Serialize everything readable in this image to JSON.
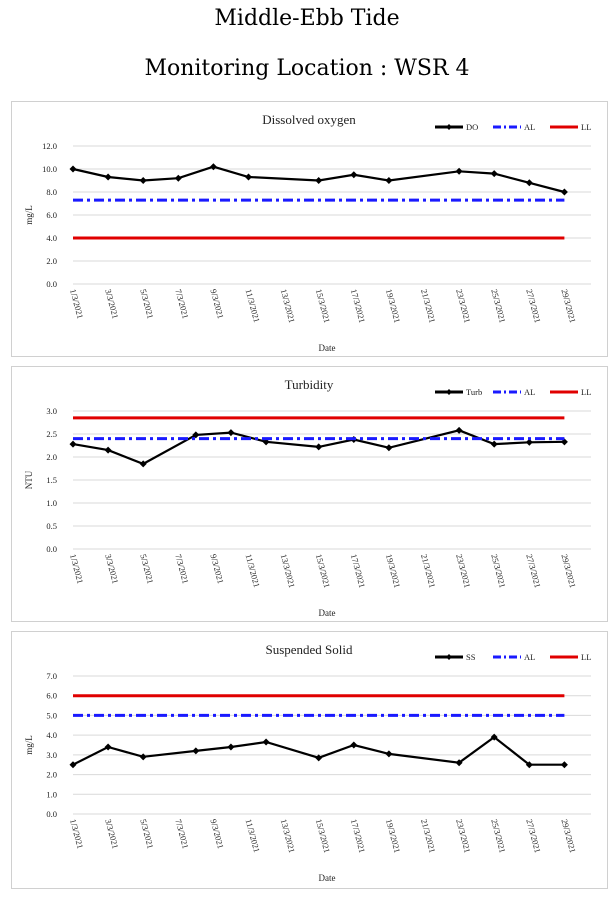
{
  "header": {
    "title": "Middle-Ebb Tide",
    "subtitle": "Monitoring Location : WSR 4"
  },
  "chart_data": [
    {
      "type": "line",
      "title": "Dissolved oxygen",
      "xlabel": "Date",
      "ylabel": "mg/L",
      "ylim": [
        0,
        12
      ],
      "yticks": [
        "0.0",
        "2.0",
        "4.0",
        "6.0",
        "8.0",
        "10.0",
        "12.0"
      ],
      "xticks": [
        "1/3/2021",
        "3/3/2021",
        "5/3/2021",
        "7/3/2021",
        "9/3/2021",
        "11/3/2021",
        "13/3/2021",
        "15/3/2021",
        "17/3/2021",
        "19/3/2021",
        "21/3/2021",
        "23/3/2021",
        "25/3/2021",
        "27/3/2021",
        "29/3/2021"
      ],
      "grid": true,
      "legend": "top-right",
      "series": [
        {
          "name": "DO",
          "color": "#000000",
          "style": "solid-marker",
          "x": [
            1,
            3,
            5,
            7,
            9,
            11,
            13,
            15,
            17,
            19,
            23,
            25,
            27,
            29
          ],
          "y": [
            10.0,
            9.3,
            9.0,
            9.2,
            10.2,
            9.3,
            null,
            9.0,
            9.5,
            9.0,
            9.8,
            9.6,
            8.8,
            8.0
          ]
        },
        {
          "name": "AL",
          "color": "#1a1aff",
          "style": "dashdot",
          "x": [
            1,
            29
          ],
          "y": [
            7.3,
            7.3
          ]
        },
        {
          "name": "LL",
          "color": "#e00000",
          "style": "solid",
          "x": [
            1,
            29
          ],
          "y": [
            4.0,
            4.0
          ]
        }
      ]
    },
    {
      "type": "line",
      "title": "Turbidity",
      "xlabel": "Date",
      "ylabel": "NTU",
      "ylim": [
        0,
        3
      ],
      "yticks": [
        "0.0",
        "0.5",
        "1.0",
        "1.5",
        "2.0",
        "2.5",
        "3.0"
      ],
      "xticks": [
        "1/3/2021",
        "3/3/2021",
        "5/3/2021",
        "7/3/2021",
        "9/3/2021",
        "11/3/2021",
        "13/3/2021",
        "15/3/2021",
        "17/3/2021",
        "19/3/2021",
        "21/3/2021",
        "23/3/2021",
        "25/3/2021",
        "27/3/2021",
        "29/3/2021"
      ],
      "grid": true,
      "legend": "top-right",
      "series": [
        {
          "name": "Turb",
          "color": "#000000",
          "style": "solid-marker",
          "x": [
            1,
            3,
            5,
            8,
            10,
            12,
            15,
            17,
            19,
            23,
            25,
            27,
            29
          ],
          "y": [
            2.28,
            2.15,
            1.85,
            2.48,
            2.53,
            2.33,
            2.22,
            2.38,
            2.2,
            2.58,
            2.28,
            2.32,
            2.33
          ]
        },
        {
          "name": "AL",
          "color": "#1a1aff",
          "style": "dashdot",
          "x": [
            1,
            29
          ],
          "y": [
            2.4,
            2.4
          ]
        },
        {
          "name": "LL",
          "color": "#e00000",
          "style": "solid",
          "x": [
            1,
            29
          ],
          "y": [
            2.85,
            2.85
          ]
        }
      ]
    },
    {
      "type": "line",
      "title": "Suspended Solid",
      "xlabel": "Date",
      "ylabel": "mg/L",
      "ylim": [
        0,
        7
      ],
      "yticks": [
        "0.0",
        "1.0",
        "2.0",
        "3.0",
        "4.0",
        "5.0",
        "6.0",
        "7.0"
      ],
      "xticks": [
        "1/3/2021",
        "3/3/2021",
        "5/3/2021",
        "7/3/2021",
        "9/3/2021",
        "11/3/2021",
        "13/3/2021",
        "15/3/2021",
        "17/3/2021",
        "19/3/2021",
        "21/3/2021",
        "23/3/2021",
        "25/3/2021",
        "27/3/2021",
        "29/3/2021"
      ],
      "grid": true,
      "legend": "top-right",
      "series": [
        {
          "name": "SS",
          "color": "#000000",
          "style": "solid-marker",
          "x": [
            1,
            3,
            5,
            8,
            10,
            12,
            15,
            17,
            19,
            23,
            25,
            27,
            29
          ],
          "y": [
            2.5,
            3.4,
            2.9,
            3.2,
            3.4,
            3.65,
            2.85,
            3.5,
            3.05,
            2.6,
            3.9,
            2.5,
            2.5
          ]
        },
        {
          "name": "AL",
          "color": "#1a1aff",
          "style": "dashdot",
          "x": [
            1,
            29
          ],
          "y": [
            5.0,
            5.0
          ]
        },
        {
          "name": "LL",
          "color": "#e00000",
          "style": "solid",
          "x": [
            1,
            29
          ],
          "y": [
            6.0,
            6.0
          ]
        }
      ]
    }
  ]
}
